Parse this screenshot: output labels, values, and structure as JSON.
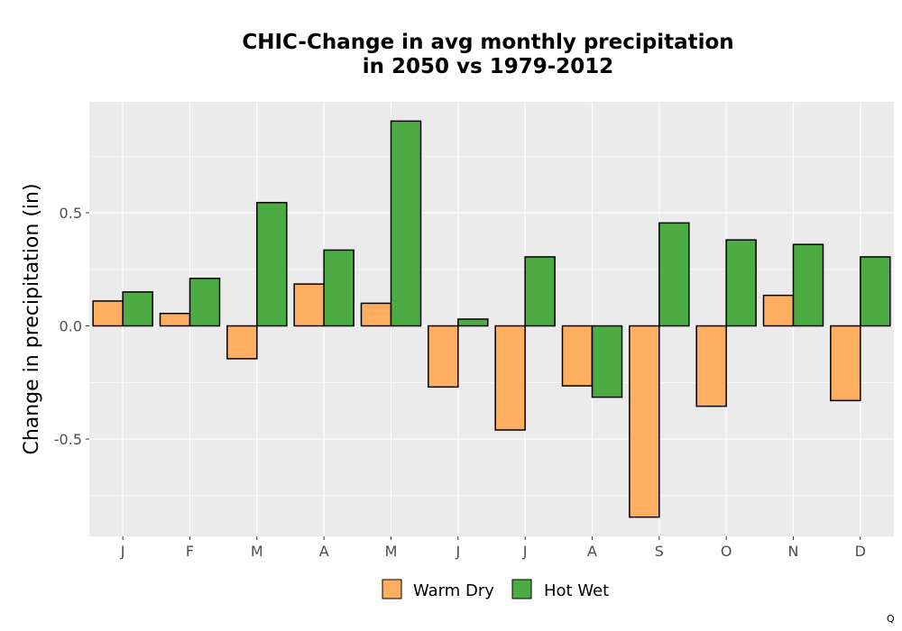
{
  "chart_data": {
    "type": "bar",
    "title_lines": [
      "CHIC-Change in avg monthly precipitation",
      "in 2050 vs 1979-2012"
    ],
    "xlabel": "",
    "ylabel": "Change in precipitation (in)",
    "categories": [
      "J",
      "F",
      "M",
      "A",
      "M",
      "J",
      "J",
      "A",
      "S",
      "O",
      "N",
      "D"
    ],
    "series": [
      {
        "name": "Warm Dry",
        "color": "#fdae61",
        "values": [
          0.11,
          0.055,
          -0.145,
          0.185,
          0.1,
          -0.27,
          -0.46,
          -0.265,
          -0.845,
          -0.355,
          0.135,
          -0.33
        ]
      },
      {
        "name": "Hot Wet",
        "color": "#4dab43",
        "values": [
          0.15,
          0.21,
          0.545,
          0.335,
          0.905,
          0.03,
          0.305,
          -0.315,
          0.455,
          0.38,
          0.36,
          0.305
        ]
      }
    ],
    "ylim": [
      -0.93,
      0.99
    ],
    "yticks": [
      0.5,
      0.0,
      -0.5
    ],
    "ytick_labels": [
      "0.5",
      "0.0",
      "-0.5"
    ],
    "grid": true,
    "legend_position": "bottom",
    "panel_background": "#ebebeb",
    "bar_outline": "#000000"
  },
  "corner_mark": "Q"
}
